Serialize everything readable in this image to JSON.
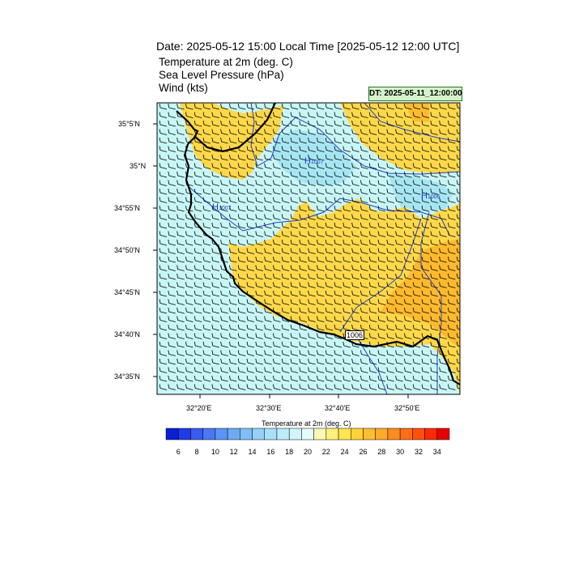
{
  "title": "Date: 2025-05-12  15:00 Local Time [2025-05-12  12:00 UTC]",
  "subtitles": [
    "Temperature at 2m   (deg. C)",
    "Sea Level Pressure   (hPa)",
    "Wind   (kts)"
  ],
  "dt_label": "DT: 2025-05-11_12:00:00",
  "lat_labels": [
    "35°5'N",
    "35°N",
    "34°55'N",
    "34°50'N",
    "34°45'N",
    "34°40'N",
    "34°35'N"
  ],
  "lon_labels": [
    "32°20'E",
    "32°30'E",
    "32°40'E",
    "32°50'E"
  ],
  "pressure_markers": [
    {
      "label": "H",
      "value": "1007"
    },
    {
      "label": "H",
      "value": "1006"
    },
    {
      "label": "H",
      "value": "1007"
    }
  ],
  "contour_label": "1006",
  "colorbar": {
    "title": "Temperature at 2m  (deg. C)",
    "tick_labels": [
      "6",
      "8",
      "10",
      "12",
      "14",
      "16",
      "18",
      "20",
      "22",
      "24",
      "26",
      "28",
      "30",
      "32",
      "34"
    ],
    "colors": [
      "#0a1ed2",
      "#1e3ce6",
      "#3a5af0",
      "#4a78f2",
      "#5a94f4",
      "#6eaaf4",
      "#80bef6",
      "#94d0f8",
      "#a8e0fa",
      "#bcecfc",
      "#d0f6fc",
      "#e6fcfc",
      "#f8fab4",
      "#fff078",
      "#ffe650",
      "#ffd23c",
      "#ffbe32",
      "#ffaa28",
      "#ff8c1e",
      "#ff6e14",
      "#ff500a",
      "#ff2a00",
      "#e60000"
    ]
  },
  "colors": {
    "cool_fill": "#c8f6f6",
    "cyan_fill": "#a6e6f2",
    "warm_fill": "#ffd84a",
    "hot_fill": "#ffb428",
    "isobar": "#1f3fc8",
    "coast": "#000000"
  }
}
